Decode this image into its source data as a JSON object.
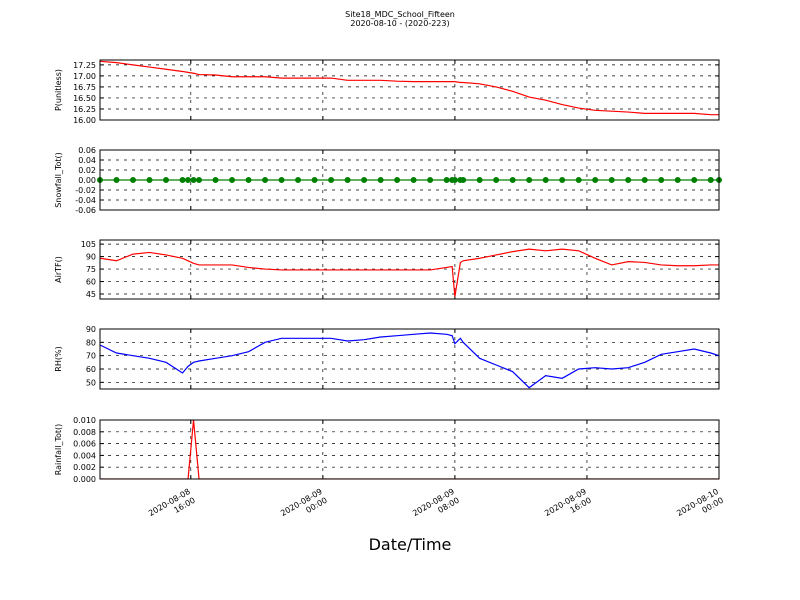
{
  "chart_data": {
    "type": "line",
    "title": "Site18_MDC_School_Fifteen",
    "subtitle": "2020-08-10 - (2020-223)",
    "xlabel": "Date/Time",
    "grid": true,
    "xlim": [
      "2020-08-08 10:30",
      "2020-08-10 00:00"
    ],
    "xticks": [
      "2020-08-08 16:00",
      "2020-08-09 00:00",
      "2020-08-09 08:00",
      "2020-08-09 16:00",
      "2020-08-10 00:00"
    ],
    "x": [
      "2020-08-08 10:30",
      "2020-08-08 11:30",
      "2020-08-08 12:30",
      "2020-08-08 13:30",
      "2020-08-08 14:30",
      "2020-08-08 15:30",
      "2020-08-08 15:50",
      "2020-08-08 16:10",
      "2020-08-08 16:30",
      "2020-08-08 17:30",
      "2020-08-08 18:30",
      "2020-08-08 19:30",
      "2020-08-08 20:30",
      "2020-08-08 21:30",
      "2020-08-08 22:30",
      "2020-08-08 23:30",
      "2020-08-09 00:30",
      "2020-08-09 01:30",
      "2020-08-09 02:30",
      "2020-08-09 03:30",
      "2020-08-09 04:30",
      "2020-08-09 05:30",
      "2020-08-09 06:30",
      "2020-08-09 07:30",
      "2020-08-09 07:50",
      "2020-08-09 08:00",
      "2020-08-09 08:20",
      "2020-08-09 08:30",
      "2020-08-09 09:30",
      "2020-08-09 10:30",
      "2020-08-09 11:30",
      "2020-08-09 12:30",
      "2020-08-09 13:30",
      "2020-08-09 14:30",
      "2020-08-09 15:30",
      "2020-08-09 16:30",
      "2020-08-09 17:30",
      "2020-08-09 18:30",
      "2020-08-09 19:30",
      "2020-08-09 20:30",
      "2020-08-09 21:30",
      "2020-08-09 22:30",
      "2020-08-09 23:30",
      "2020-08-10 00:00"
    ],
    "panels": [
      {
        "ylabel": "P(unitless)",
        "ylim": [
          16.0,
          17.36
        ],
        "yticks": [
          {
            "value": 16.0,
            "label": "16.00"
          },
          {
            "value": 16.25,
            "label": "16.25"
          },
          {
            "value": 16.5,
            "label": "16.50"
          },
          {
            "value": 16.75,
            "label": "16.75"
          },
          {
            "value": 17.0,
            "label": "17.00"
          },
          {
            "value": 17.25,
            "label": "17.25"
          }
        ],
        "series": [
          {
            "color": "#ff0000",
            "values": [
              17.33,
              17.3,
              17.25,
              17.2,
              17.15,
              17.1,
              17.08,
              17.06,
              17.03,
              17.02,
              16.98,
              16.98,
              16.98,
              16.95,
              16.95,
              16.95,
              16.95,
              16.9,
              16.9,
              16.9,
              16.88,
              16.87,
              16.87,
              16.87,
              16.87,
              16.87,
              16.85,
              16.85,
              16.82,
              16.75,
              16.65,
              16.52,
              16.45,
              16.35,
              16.27,
              16.22,
              16.2,
              16.18,
              16.15,
              16.15,
              16.15,
              16.15,
              16.12,
              16.12
            ]
          }
        ]
      },
      {
        "ylabel": "Snowfall_Tot()",
        "ylim": [
          -0.06,
          0.06
        ],
        "yticks": [
          {
            "value": -0.06,
            "label": "-0.06"
          },
          {
            "value": -0.04,
            "label": "-0.04"
          },
          {
            "value": -0.02,
            "label": "-0.02"
          },
          {
            "value": 0,
            "label": "0.00"
          },
          {
            "value": 0.02,
            "label": "0.02"
          },
          {
            "value": 0.04,
            "label": "0.04"
          },
          {
            "value": 0.06,
            "label": "0.06"
          }
        ],
        "series": [
          {
            "color": "#008000",
            "marker": "o",
            "values": [
              0,
              0,
              0,
              0,
              0,
              0,
              0,
              0,
              0,
              0,
              0,
              0,
              0,
              0,
              0,
              0,
              0,
              0,
              0,
              0,
              0,
              0,
              0,
              0,
              0,
              0,
              0,
              0,
              0,
              0,
              0,
              0,
              0,
              0,
              0,
              0,
              0,
              0,
              0,
              0,
              0,
              0,
              0,
              0
            ]
          }
        ]
      },
      {
        "ylabel": "AirTF()",
        "ylim": [
          39,
          110
        ],
        "yticks": [
          45,
          60,
          75,
          90,
          105
        ],
        "series": [
          {
            "color": "#ff0000",
            "values": [
              88,
              85,
              93,
              95,
              92,
              88,
              85,
              82,
              80,
              80,
              80,
              77,
              75,
              74,
              74,
              74,
              74,
              74,
              74,
              74,
              74,
              74,
              74,
              77,
              78,
              42,
              83,
              85,
              88,
              92,
              96,
              99,
              97,
              99,
              97,
              88,
              80,
              84,
              83,
              80,
              79,
              79,
              80,
              80
            ]
          }
        ]
      },
      {
        "ylabel": "RH(%)",
        "ylim": [
          45,
          90
        ],
        "yticks": [
          50,
          60,
          70,
          80,
          90
        ],
        "series": [
          {
            "color": "#0000ff",
            "values": [
              78,
              72,
              70,
              68,
              65,
              57,
              62,
              65,
              66,
              68,
              70,
              73,
              80,
              83,
              83,
              83,
              83,
              81,
              82,
              84,
              85,
              86,
              87,
              86,
              85,
              79,
              83,
              80,
              68,
              63,
              58,
              46,
              55,
              53,
              60,
              61,
              60,
              61,
              65,
              71,
              73,
              75,
              72,
              70
            ]
          }
        ]
      },
      {
        "ylabel": "Rainfall_Tot()",
        "ylim": [
          0,
          0.01
        ],
        "yticks": [
          {
            "value": 0,
            "label": "0.000"
          },
          {
            "value": 0.002,
            "label": "0.002"
          },
          {
            "value": 0.004,
            "label": "0.004"
          },
          {
            "value": 0.006,
            "label": "0.006"
          },
          {
            "value": 0.008,
            "label": "0.008"
          },
          {
            "value": 0.01,
            "label": "0.010"
          }
        ],
        "series": [
          {
            "color": "#ff0000",
            "values": [
              0,
              0,
              0,
              0,
              0,
              0,
              0,
              0.01,
              0,
              0,
              0,
              0,
              0,
              0,
              0,
              0,
              0,
              0,
              0,
              0,
              0,
              0,
              0,
              0,
              0,
              0,
              0,
              0,
              0,
              0,
              0,
              0,
              0,
              0,
              0,
              0,
              0,
              0,
              0,
              0,
              0,
              0,
              0,
              0
            ]
          }
        ]
      }
    ]
  }
}
